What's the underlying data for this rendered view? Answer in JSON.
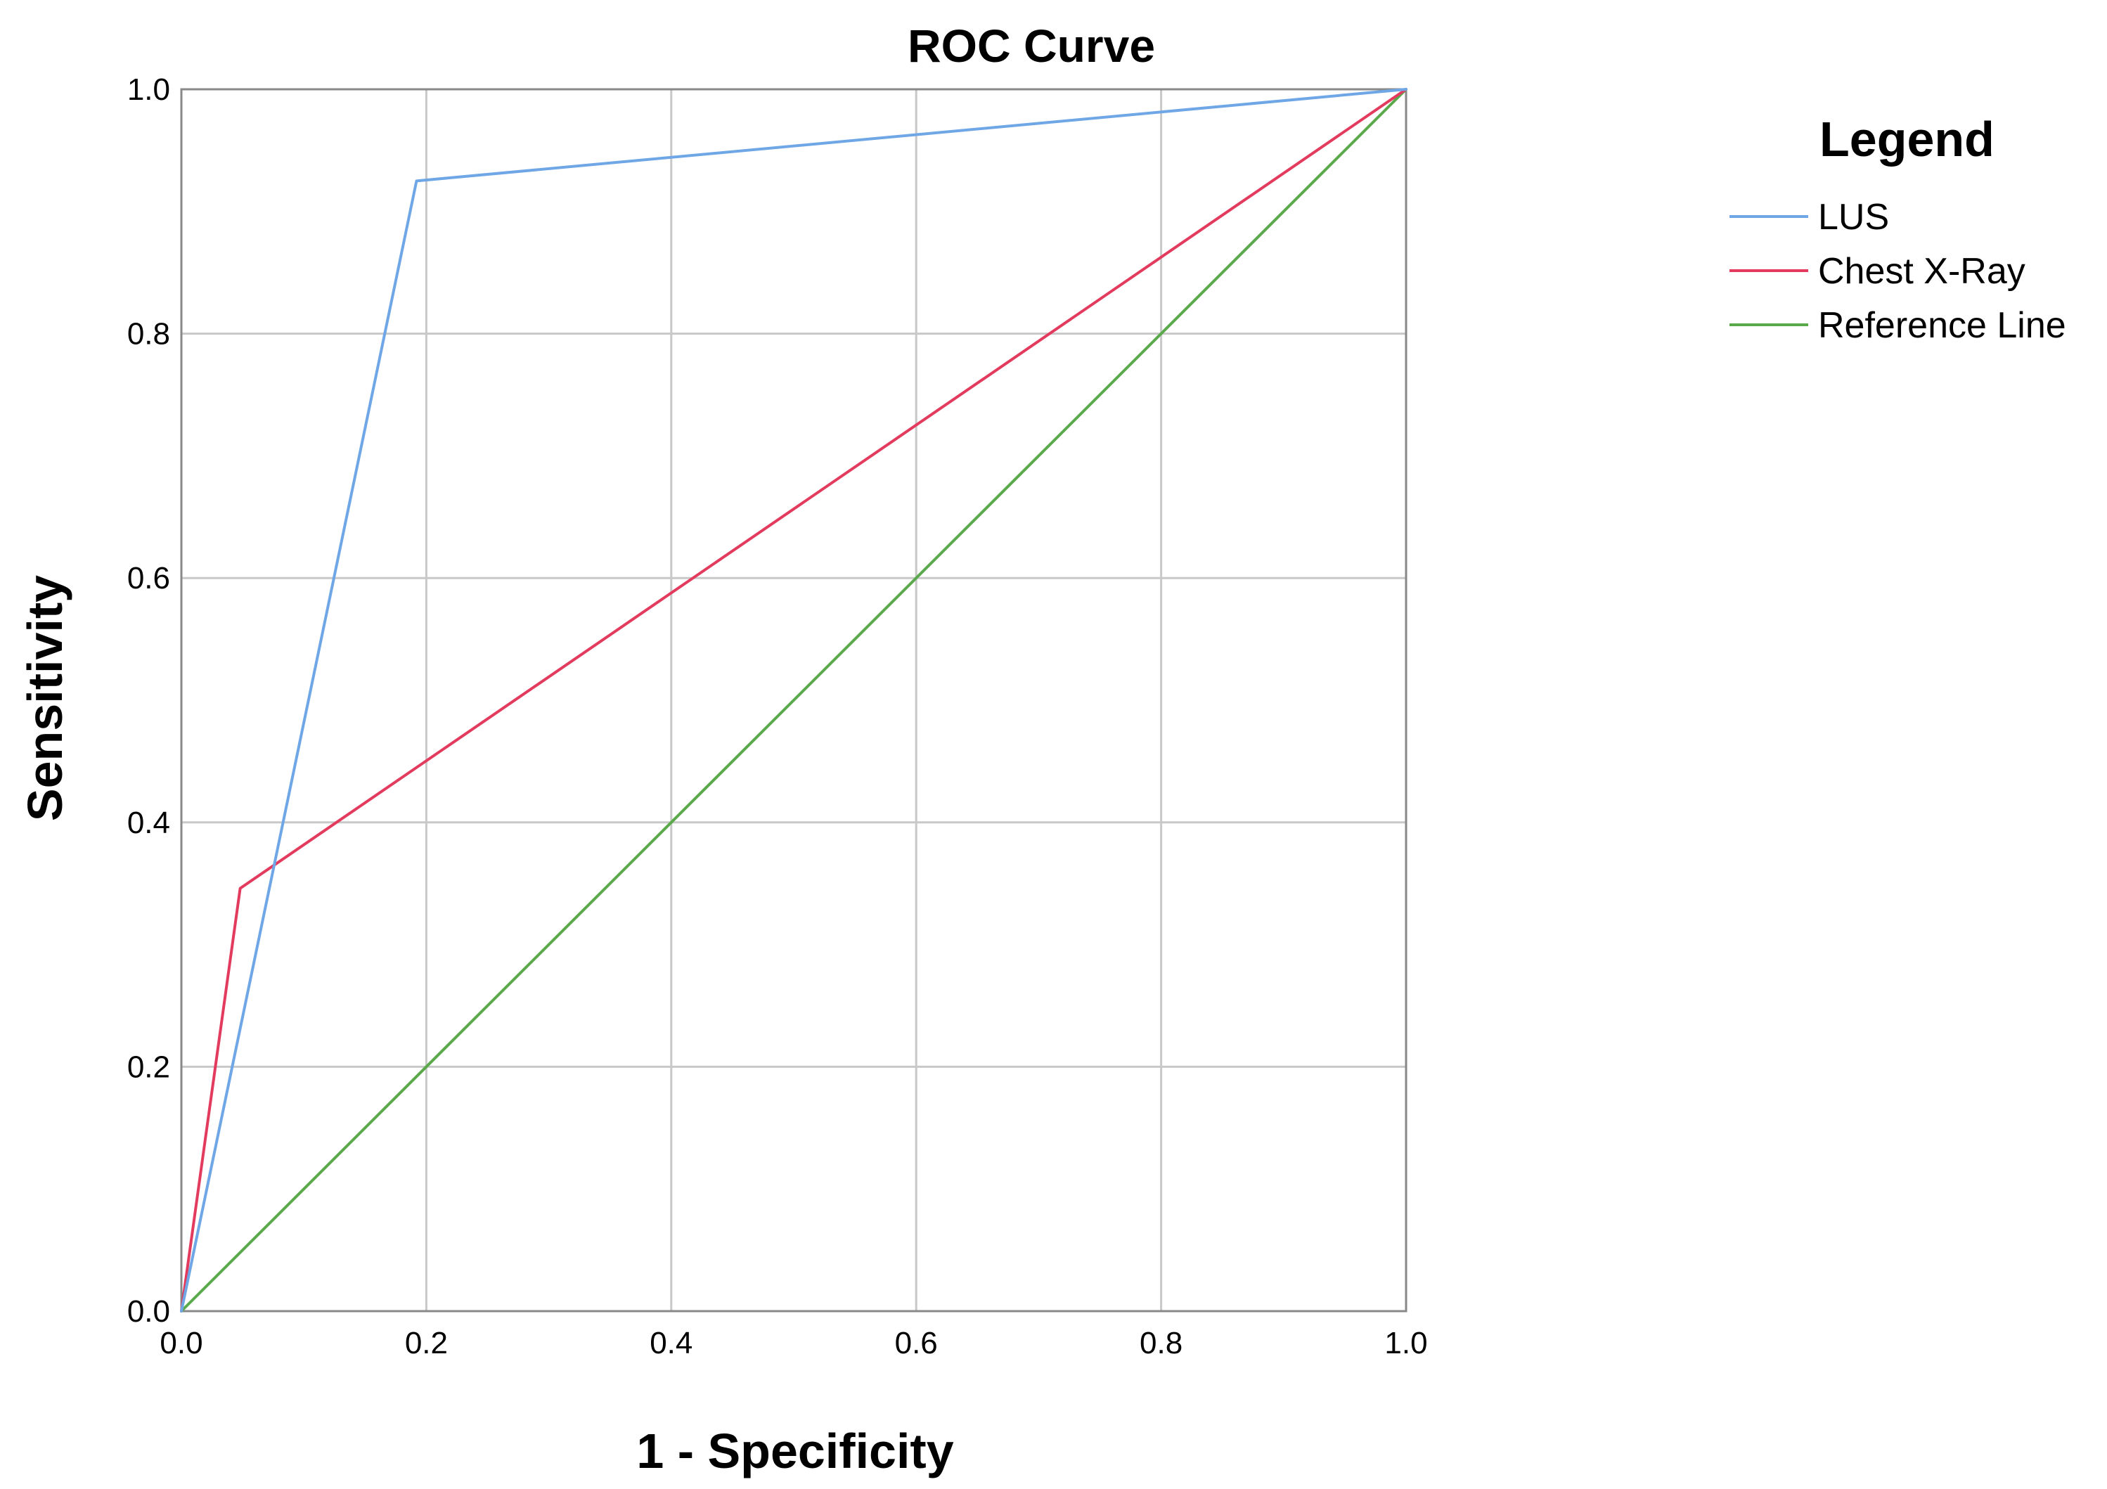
{
  "chart_data": {
    "type": "line",
    "title": "ROC Curve",
    "xlabel": "1 - Specificity",
    "ylabel": "Sensitivity",
    "xlim": [
      0,
      1
    ],
    "ylim": [
      0,
      1
    ],
    "grid": true,
    "x_ticks": [
      "0.0",
      "0.2",
      "0.4",
      "0.6",
      "0.8",
      "1.0"
    ],
    "y_ticks": [
      "0.0",
      "0.2",
      "0.4",
      "0.6",
      "0.8",
      "1.0"
    ],
    "legend": {
      "title": "Legend",
      "placement": "right"
    },
    "series": [
      {
        "name": "LUS",
        "color": "#6fa7e6",
        "x": [
          0.0,
          0.192,
          1.0
        ],
        "y": [
          0.0,
          0.925,
          1.0
        ]
      },
      {
        "name": "Chest X-Ray",
        "color": "#e23b5e",
        "x": [
          0.0,
          0.048,
          1.0
        ],
        "y": [
          0.0,
          0.346,
          1.0
        ]
      },
      {
        "name": "Reference Line",
        "color": "#5aaa4c",
        "x": [
          0.0,
          1.0
        ],
        "y": [
          0.0,
          1.0
        ]
      }
    ]
  }
}
